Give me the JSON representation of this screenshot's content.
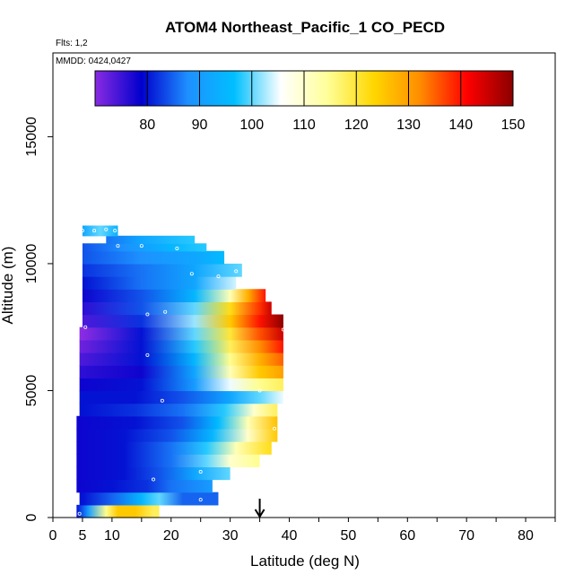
{
  "chart_data": {
    "type": "heatmap",
    "title": "ATOM4 Northeast_Pacific_1 CO_PECD",
    "flights_label": "Flts: 1,2",
    "dates_label": "MMDD: 0424,0427",
    "xlabel": "Latitude (deg N)",
    "ylabel": "Altitude (m)",
    "xlim": [
      0,
      85
    ],
    "ylim": [
      0,
      18300
    ],
    "x_ticks": [
      0,
      5,
      10,
      20,
      30,
      40,
      50,
      60,
      70,
      80
    ],
    "y_ticks": [
      0,
      5000,
      10000,
      15000
    ],
    "colorbar": {
      "range": [
        70,
        150
      ],
      "ticks": [
        80,
        90,
        100,
        110,
        120,
        130,
        140,
        150
      ],
      "colors": [
        "#8a2be2",
        "#0000cd",
        "#1e90ff",
        "#00bfff",
        "#ffffff",
        "#ffff99",
        "#ffd700",
        "#ff8c00",
        "#ff0000",
        "#8b0000"
      ]
    },
    "marker_latitude": 35,
    "cells": [
      {
        "lat": [
          4,
          18
        ],
        "alt": [
          0,
          500
        ],
        "values": [
          [
            4,
            80
          ],
          [
            6,
            90
          ],
          [
            9,
            115
          ],
          [
            11,
            125
          ],
          [
            14,
            125
          ],
          [
            17,
            118
          ]
        ]
      },
      {
        "lat": [
          4.5,
          28
        ],
        "alt": [
          500,
          1000
        ],
        "values": [
          [
            5,
            80
          ],
          [
            10,
            85
          ],
          [
            15,
            95
          ],
          [
            18,
            100
          ],
          [
            22,
            85
          ],
          [
            28,
            85
          ]
        ]
      },
      {
        "lat": [
          4,
          27
        ],
        "alt": [
          1000,
          1500
        ],
        "values": [
          [
            4,
            78
          ],
          [
            10,
            80
          ],
          [
            16,
            82
          ],
          [
            20,
            86
          ],
          [
            27,
            90
          ]
        ]
      },
      {
        "lat": [
          4,
          30
        ],
        "alt": [
          1500,
          2000
        ],
        "values": [
          [
            4,
            78
          ],
          [
            12,
            80
          ],
          [
            18,
            84
          ],
          [
            24,
            92
          ],
          [
            30,
            100
          ]
        ]
      },
      {
        "lat": [
          4,
          35
        ],
        "alt": [
          2000,
          2500
        ],
        "values": [
          [
            4,
            78
          ],
          [
            12,
            80
          ],
          [
            20,
            86
          ],
          [
            26,
            100
          ],
          [
            30,
            110
          ],
          [
            35,
            115
          ]
        ]
      },
      {
        "lat": [
          4,
          37
        ],
        "alt": [
          2500,
          3000
        ],
        "values": [
          [
            4,
            78
          ],
          [
            12,
            80
          ],
          [
            20,
            86
          ],
          [
            26,
            98
          ],
          [
            31,
            112
          ],
          [
            37,
            122
          ]
        ]
      },
      {
        "lat": [
          4,
          38
        ],
        "alt": [
          3000,
          3500
        ],
        "values": [
          [
            4,
            78
          ],
          [
            12,
            80
          ],
          [
            20,
            84
          ],
          [
            27,
            95
          ],
          [
            33,
            110
          ],
          [
            38,
            125
          ]
        ]
      },
      {
        "lat": [
          4,
          38
        ],
        "alt": [
          3500,
          4000
        ],
        "values": [
          [
            4,
            78
          ],
          [
            14,
            80
          ],
          [
            22,
            84
          ],
          [
            28,
            96
          ],
          [
            33,
            112
          ],
          [
            38,
            126
          ]
        ]
      },
      {
        "lat": [
          4.5,
          38
        ],
        "alt": [
          4000,
          4500
        ],
        "values": [
          [
            5,
            80
          ],
          [
            14,
            82
          ],
          [
            22,
            86
          ],
          [
            29,
            98
          ],
          [
            34,
            110
          ],
          [
            38,
            118
          ]
        ]
      },
      {
        "lat": [
          4.5,
          39
        ],
        "alt": [
          4500,
          5000
        ],
        "values": [
          [
            5,
            80
          ],
          [
            14,
            80
          ],
          [
            22,
            84
          ],
          [
            30,
            92
          ],
          [
            35,
            100
          ],
          [
            39,
            105
          ]
        ]
      },
      {
        "lat": [
          4.5,
          39
        ],
        "alt": [
          5000,
          5500
        ],
        "values": [
          [
            5,
            78
          ],
          [
            15,
            80
          ],
          [
            24,
            90
          ],
          [
            30,
            105
          ],
          [
            35,
            115
          ],
          [
            39,
            118
          ]
        ]
      },
      {
        "lat": [
          4.5,
          39
        ],
        "alt": [
          5500,
          6000
        ],
        "values": [
          [
            5,
            76
          ],
          [
            15,
            78
          ],
          [
            24,
            92
          ],
          [
            30,
            112
          ],
          [
            35,
            125
          ],
          [
            39,
            130
          ]
        ]
      },
      {
        "lat": [
          4.5,
          39
        ],
        "alt": [
          6000,
          6500
        ],
        "values": [
          [
            5,
            74
          ],
          [
            15,
            80
          ],
          [
            24,
            95
          ],
          [
            30,
            115
          ],
          [
            35,
            128
          ],
          [
            39,
            135
          ]
        ]
      },
      {
        "lat": [
          4.5,
          39
        ],
        "alt": [
          6500,
          7000
        ],
        "values": [
          [
            5,
            72
          ],
          [
            15,
            80
          ],
          [
            24,
            98
          ],
          [
            30,
            118
          ],
          [
            35,
            132
          ],
          [
            39,
            140
          ]
        ]
      },
      {
        "lat": [
          4.5,
          39
        ],
        "alt": [
          7000,
          7500
        ],
        "values": [
          [
            5,
            70
          ],
          [
            15,
            80
          ],
          [
            24,
            100
          ],
          [
            30,
            120
          ],
          [
            35,
            136
          ],
          [
            39,
            145
          ]
        ]
      },
      {
        "lat": [
          5,
          39
        ],
        "alt": [
          7500,
          8000
        ],
        "values": [
          [
            5,
            74
          ],
          [
            15,
            82
          ],
          [
            24,
            102
          ],
          [
            30,
            125
          ],
          [
            35,
            140
          ],
          [
            39,
            150
          ]
        ]
      },
      {
        "lat": [
          5,
          37
        ],
        "alt": [
          8000,
          8500
        ],
        "values": [
          [
            5,
            76
          ],
          [
            15,
            84
          ],
          [
            24,
            100
          ],
          [
            30,
            122
          ],
          [
            35,
            138
          ],
          [
            37,
            145
          ]
        ]
      },
      {
        "lat": [
          5,
          36
        ],
        "alt": [
          8500,
          9000
        ],
        "values": [
          [
            5,
            78
          ],
          [
            15,
            84
          ],
          [
            24,
            95
          ],
          [
            30,
            112
          ],
          [
            33,
            128
          ],
          [
            36,
            140
          ]
        ]
      },
      {
        "lat": [
          5,
          31
        ],
        "alt": [
          9000,
          9500
        ],
        "values": [
          [
            5,
            80
          ],
          [
            15,
            86
          ],
          [
            24,
            92
          ],
          [
            31,
            104
          ]
        ]
      },
      {
        "lat": [
          5,
          32
        ],
        "alt": [
          9500,
          10000
        ],
        "values": [
          [
            5,
            82
          ],
          [
            15,
            86
          ],
          [
            24,
            92
          ],
          [
            32,
            100
          ]
        ]
      },
      {
        "lat": [
          5,
          29
        ],
        "alt": [
          10000,
          10500
        ],
        "values": [
          [
            5,
            84
          ],
          [
            15,
            88
          ],
          [
            24,
            92
          ],
          [
            29,
            96
          ]
        ]
      },
      {
        "lat": [
          5,
          26
        ],
        "alt": [
          10500,
          10800
        ],
        "values": [
          [
            5,
            84
          ],
          [
            12,
            88
          ],
          [
            20,
            95
          ],
          [
            26,
            98
          ]
        ]
      },
      {
        "lat": [
          9,
          24
        ],
        "alt": [
          10800,
          11100
        ],
        "values": [
          [
            9,
            86
          ],
          [
            15,
            92
          ],
          [
            24,
            98
          ]
        ]
      },
      {
        "lat": [
          5,
          11
        ],
        "alt": [
          11100,
          11500
        ],
        "values": [
          [
            5,
            92
          ],
          [
            8,
            100
          ],
          [
            11,
            94
          ]
        ]
      }
    ],
    "samples": [
      [
        5,
        11300
      ],
      [
        7,
        11300
      ],
      [
        9,
        11350
      ],
      [
        10.5,
        11300
      ],
      [
        11,
        10700
      ],
      [
        15,
        10700
      ],
      [
        21,
        10600
      ],
      [
        23.5,
        9600
      ],
      [
        28,
        9500
      ],
      [
        31,
        9700
      ],
      [
        37,
        8700
      ],
      [
        39,
        7400
      ],
      [
        19,
        8100
      ],
      [
        5.5,
        7500
      ],
      [
        16,
        8000
      ],
      [
        16,
        6400
      ],
      [
        18.5,
        4600
      ],
      [
        35,
        5000
      ],
      [
        37.5,
        3500
      ],
      [
        25,
        1800
      ],
      [
        17,
        1500
      ],
      [
        25,
        700
      ],
      [
        4.5,
        150
      ]
    ]
  }
}
